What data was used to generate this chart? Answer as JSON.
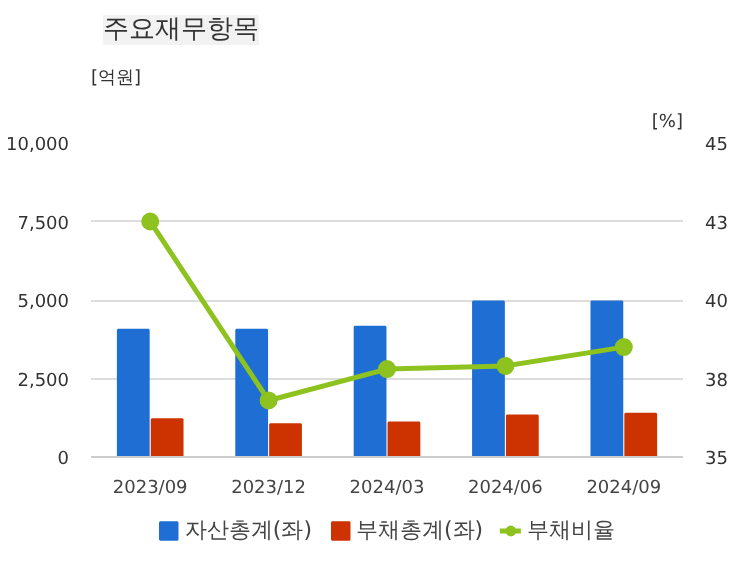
{
  "chart_data": {
    "type": "bar",
    "title": "주요재무항목",
    "ylabel": "[억원]",
    "y2label": "[%]",
    "categories": [
      "2023/09",
      "2023/12",
      "2024/03",
      "2024/06",
      "2024/09"
    ],
    "series": [
      {
        "name": "자산총계(좌)",
        "color": "#1f6ed4",
        "values": [
          4050,
          4050,
          4150,
          4950,
          4950
        ]
      },
      {
        "name": "부채총계(좌)",
        "color": "#cc3300",
        "values": [
          1200,
          1040,
          1100,
          1320,
          1380
        ]
      },
      {
        "name": "부채비율",
        "type": "line",
        "axis": "y2",
        "color": "#8dc21f",
        "values": [
          42.5,
          36.8,
          37.8,
          37.9,
          38.5
        ]
      }
    ],
    "ylim": [
      0,
      10000
    ],
    "yticks": [
      {
        "value": 0,
        "label": "0"
      },
      {
        "value": 2500,
        "label": "2,500"
      },
      {
        "value": 5000,
        "label": "5,000"
      },
      {
        "value": 7500,
        "label": "7,500"
      },
      {
        "value": 10000,
        "label": "10,000"
      }
    ],
    "y2lim": [
      35,
      45
    ],
    "y2ticks": [
      35,
      {
        "value": 37.5,
        "label": "38"
      },
      40,
      {
        "value": 42.5,
        "label": "43"
      },
      45
    ],
    "grid": "y",
    "legend": "bottom",
    "marker": "circle"
  }
}
